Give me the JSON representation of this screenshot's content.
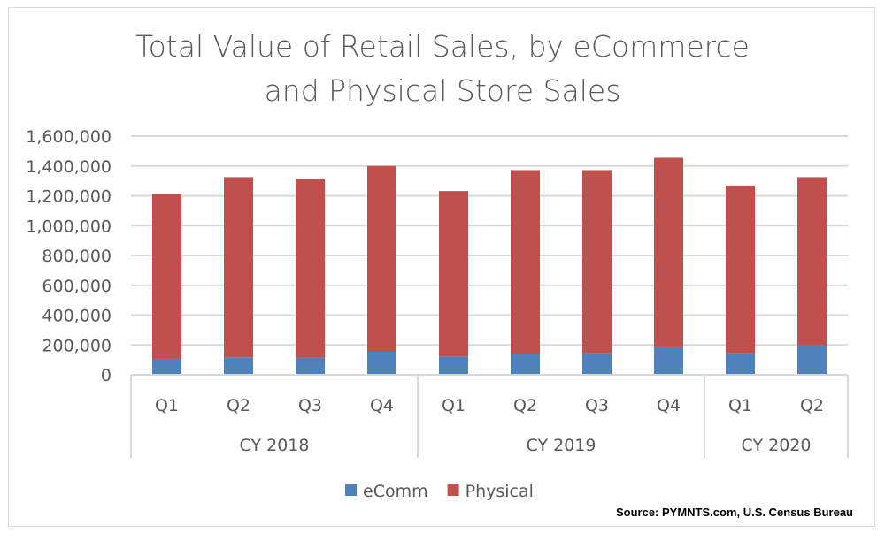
{
  "chart_data": {
    "type": "bar",
    "stacked": true,
    "title_lines": [
      "Total Value of Retail Sales, by eCommerce",
      "and Physical Store Sales"
    ],
    "categories": [
      "Q1",
      "Q2",
      "Q3",
      "Q4",
      "Q1",
      "Q2",
      "Q3",
      "Q4",
      "Q1",
      "Q2"
    ],
    "groups": [
      {
        "label": "CY 2018",
        "count": 4
      },
      {
        "label": "CY 2019",
        "count": 4
      },
      {
        "label": "CY 2020",
        "count": 2
      }
    ],
    "series": [
      {
        "name": "eComm",
        "color": "#4f81bd",
        "values": [
          107000,
          117000,
          115000,
          154000,
          123000,
          139000,
          143000,
          184000,
          143000,
          198000
        ]
      },
      {
        "name": "Physical",
        "color": "#c0504d",
        "values": [
          1105000,
          1208000,
          1200000,
          1246000,
          1109000,
          1233000,
          1229000,
          1271000,
          1126000,
          1127000
        ]
      }
    ],
    "ylim": [
      0,
      1600000
    ],
    "yticks": [
      "0",
      "200,000",
      "400,000",
      "600,000",
      "800,000",
      "1,000,000",
      "1,200,000",
      "1,400,000",
      "1,600,000"
    ],
    "grid": true,
    "legend": "bottom",
    "xlabel": "",
    "ylabel": ""
  },
  "source": "Source: PYMNTS.com, U.S. Census Bureau"
}
